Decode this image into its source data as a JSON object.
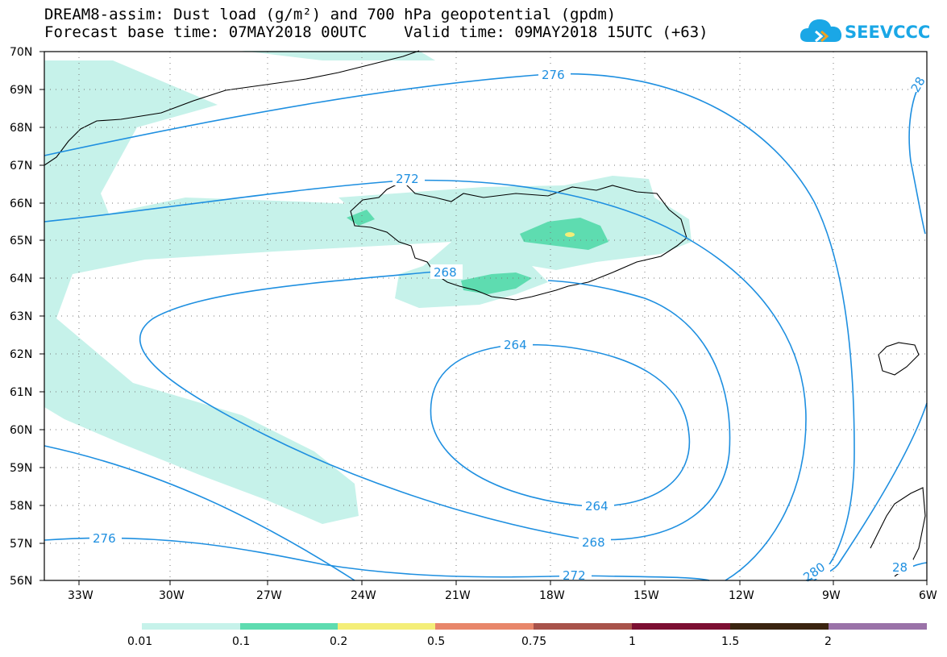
{
  "title": {
    "line1": "DREAM8-assim: Dust load (g/m²) and 700 hPa geopotential (gpdm)",
    "line2": "Forecast base time: 07MAY2018 00UTC    Valid time: 09MAY2018 15UTC (+63)"
  },
  "logo": {
    "text": "SEEVCCC",
    "icon": "cloud-icon",
    "color": "#1aa7e6"
  },
  "map": {
    "lat_labels": [
      "70N",
      "69N",
      "68N",
      "67N",
      "66N",
      "65N",
      "64N",
      "63N",
      "62N",
      "61N",
      "60N",
      "59N",
      "58N",
      "57N",
      "56N"
    ],
    "lon_labels": [
      "33W",
      "30W",
      "27W",
      "24W",
      "21W",
      "18W",
      "15W",
      "12W",
      "9W",
      "6W"
    ],
    "contour_color": "#1e8fe0",
    "contour_labels": [
      "276",
      "272",
      "268",
      "264",
      "264",
      "268",
      "272",
      "276",
      "280",
      "28",
      "28"
    ]
  },
  "legend": {
    "ticks": [
      "0.01",
      "0.1",
      "0.2",
      "0.5",
      "0.75",
      "1",
      "1.5",
      "2"
    ],
    "colors": [
      "#c6f2ea",
      "#5edcb0",
      "#f4ee78",
      "#e8866a",
      "#a8524a",
      "#7c0f32",
      "#3a2410",
      "#9a72a8"
    ]
  }
}
